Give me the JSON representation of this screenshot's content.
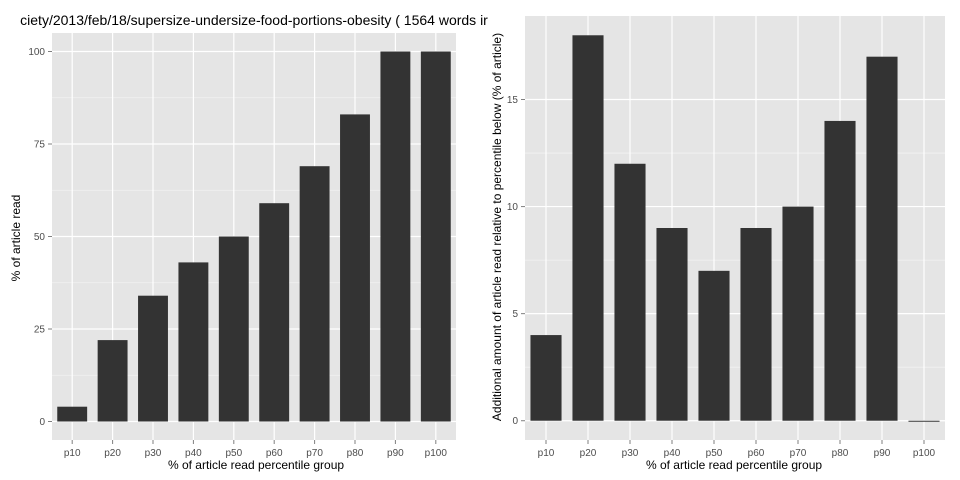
{
  "chart_data": [
    {
      "type": "bar",
      "title": "ciety/2013/feb/18/supersize-undersize-food-portions-obesity ( 1564 words ir",
      "xlabel": "% of article read percentile group",
      "ylabel": "% of article read",
      "categories": [
        "p10",
        "p20",
        "p30",
        "p40",
        "p50",
        "p60",
        "p70",
        "p80",
        "p90",
        "p100"
      ],
      "values": [
        4,
        22,
        34,
        43,
        50,
        59,
        69,
        83,
        100,
        100
      ],
      "ylim": [
        -5,
        105
      ],
      "yticks": [
        0,
        25,
        50,
        75,
        100
      ],
      "ytick_labels": [
        "0",
        "25",
        "50",
        "75",
        "100"
      ],
      "grid": true,
      "bar_color": "#333333",
      "panel_color": "#e5e5e5",
      "grid_color": "#ffffff"
    },
    {
      "type": "bar",
      "title": "",
      "xlabel": "% of article read percentile group",
      "ylabel": "Additional amount of article read relative to percentile below (% of article)",
      "categories": [
        "p10",
        "p20",
        "p30",
        "p40",
        "p50",
        "p60",
        "p70",
        "p80",
        "p90",
        "p100"
      ],
      "values": [
        4,
        18,
        12,
        9,
        7,
        9,
        10,
        14,
        17,
        0
      ],
      "ylim": [
        -0.9,
        18.9
      ],
      "yticks": [
        0,
        5,
        10,
        15
      ],
      "ytick_labels": [
        "0",
        "5",
        "10",
        "15"
      ],
      "grid": true,
      "bar_color": "#333333",
      "panel_color": "#e5e5e5",
      "grid_color": "#ffffff"
    }
  ]
}
